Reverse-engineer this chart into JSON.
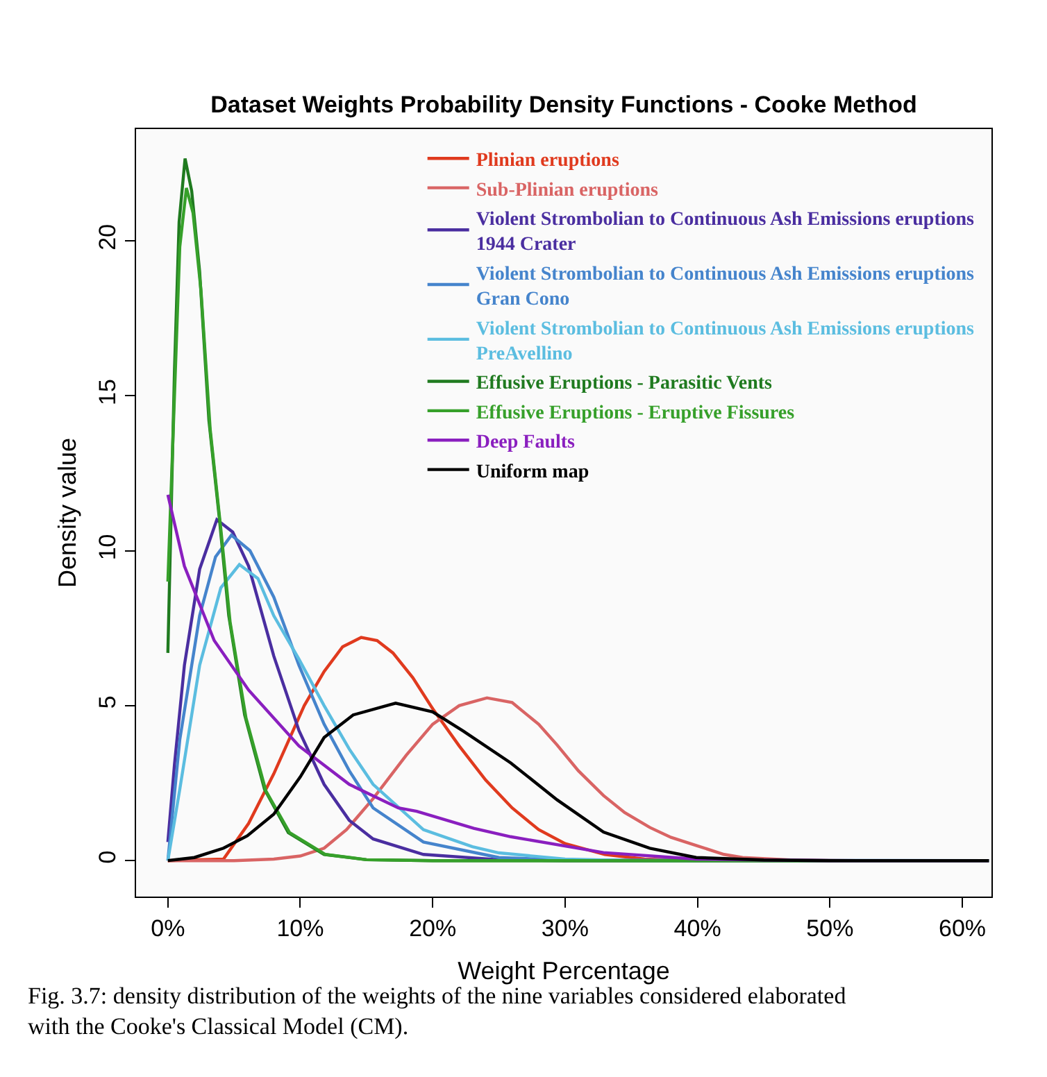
{
  "chart_data": {
    "type": "line",
    "title": "Dataset Weights Probability Density Functions - Cooke Method",
    "xlabel": "Weight Percentage",
    "ylabel": "Density value",
    "xlim": [
      -2.4,
      62.2
    ],
    "ylim": [
      -1.16,
      23.6
    ],
    "xticks": [
      {
        "value": 0,
        "label": "0%"
      },
      {
        "value": 10,
        "label": "10%"
      },
      {
        "value": 20,
        "label": "20%"
      },
      {
        "value": 30,
        "label": "30%"
      },
      {
        "value": 40,
        "label": "40%"
      },
      {
        "value": 50,
        "label": "50%"
      },
      {
        "value": 60,
        "label": "60%"
      }
    ],
    "yticks": [
      0,
      5,
      10,
      15,
      20
    ],
    "legend": "top right",
    "marker": "none",
    "line_style": "solid",
    "annotations": [
      "Fig. 3.7: density distribution of the weights of the nine variables considered elaborated with the Cooke's Classical Model (CM)."
    ],
    "series": [
      {
        "name": "Plinian eruptions",
        "color": "#e03a1e",
        "x": [
          0,
          4.2,
          6.1,
          8,
          10.3,
          11.8,
          13.2,
          14.6,
          15.8,
          17,
          18.5,
          20,
          22,
          24,
          26,
          28,
          30,
          33,
          36,
          40,
          62
        ],
        "values": [
          0,
          0.05,
          1.2,
          2.8,
          5.0,
          6.1,
          6.9,
          7.2,
          7.1,
          6.7,
          5.9,
          4.9,
          3.7,
          2.6,
          1.7,
          1.0,
          0.55,
          0.2,
          0.05,
          0,
          0
        ]
      },
      {
        "name": "Sub-Plinian eruptions",
        "color": "#d96464",
        "x": [
          0,
          5,
          8,
          10,
          11.8,
          13.5,
          15.5,
          18,
          20,
          22,
          24.1,
          26,
          28,
          29.4,
          31,
          32.9,
          34.5,
          36.4,
          38,
          39.9,
          42,
          43.4,
          47,
          52,
          62
        ],
        "values": [
          0,
          0,
          0.05,
          0.15,
          0.4,
          1.0,
          2.0,
          3.4,
          4.4,
          5.0,
          5.25,
          5.1,
          4.4,
          3.73,
          2.9,
          2.1,
          1.55,
          1.07,
          0.75,
          0.49,
          0.2,
          0.1,
          0.02,
          0,
          0
        ]
      },
      {
        "name": "Violent Strombolian to Continuous Ash Emissions eruptions\n1944 Crater",
        "color": "#4a2ea0",
        "x": [
          0,
          0.5,
          1.25,
          2.4,
          3.7,
          4.9,
          6.1,
          8,
          9.9,
          11.8,
          13.7,
          15.5,
          19.3,
          25,
          30,
          62
        ],
        "values": [
          0.6,
          3.1,
          6.3,
          9.4,
          11.0,
          10.6,
          9.5,
          6.6,
          4.2,
          2.46,
          1.3,
          0.7,
          0.2,
          0.03,
          0,
          0
        ]
      },
      {
        "name": "Violent Strombolian to Continuous Ash Emissions eruptions\nGran Cono",
        "color": "#4584cc",
        "x": [
          0,
          0.9,
          2.4,
          3.6,
          4.8,
          6.2,
          8,
          9.9,
          11.8,
          13.7,
          15.5,
          19.3,
          25,
          30,
          62
        ],
        "values": [
          0,
          3.9,
          7.9,
          9.8,
          10.5,
          10.0,
          8.5,
          6.3,
          4.4,
          2.9,
          1.7,
          0.6,
          0.1,
          0.02,
          0
        ]
      },
      {
        "name": "Violent Strombolian to Continuous Ash Emissions eruptions\nPreAvellino",
        "color": "#5bbde0",
        "x": [
          0,
          0.9,
          2.4,
          4,
          5.4,
          6.8,
          8,
          9.9,
          11.8,
          13.7,
          15.5,
          19.3,
          23,
          25,
          30,
          35,
          62
        ],
        "values": [
          0,
          2.3,
          6.3,
          8.8,
          9.55,
          9.1,
          7.9,
          6.5,
          5.0,
          3.6,
          2.46,
          1.0,
          0.45,
          0.25,
          0.05,
          0,
          0
        ]
      },
      {
        "name": "Effusive Eruptions - Parasitic Vents",
        "color": "#1f7a1f",
        "x": [
          0,
          0.5,
          0.85,
          1.3,
          1.8,
          2.4,
          3.1,
          3.9,
          4.6,
          5.8,
          7.3,
          9.1,
          11.8,
          15,
          20,
          62
        ],
        "values": [
          6.7,
          15.8,
          20.6,
          22.65,
          21.6,
          19.0,
          14.2,
          11.0,
          7.9,
          4.7,
          2.3,
          0.9,
          0.2,
          0.03,
          0,
          0
        ]
      },
      {
        "name": "Effusive Eruptions - Eruptive Fissures",
        "color": "#36a02a",
        "x": [
          0,
          0.5,
          0.9,
          1.4,
          1.9,
          2.5,
          3.2,
          4.0,
          4.7,
          5.9,
          7.4,
          9.2,
          11.9,
          15,
          20,
          62
        ],
        "values": [
          9.0,
          15.0,
          19.8,
          21.7,
          20.9,
          18.4,
          13.9,
          10.7,
          7.7,
          4.6,
          2.25,
          0.9,
          0.2,
          0.03,
          0,
          0
        ]
      },
      {
        "name": "Deep Faults",
        "color": "#8a1fbf",
        "x": [
          0,
          1.25,
          3.5,
          6.1,
          9.9,
          13.7,
          17.4,
          18.8,
          23.1,
          25.9,
          32.9,
          39.9,
          45,
          50,
          62
        ],
        "values": [
          11.8,
          9.5,
          7.1,
          5.5,
          3.7,
          2.46,
          1.7,
          1.59,
          1.04,
          0.77,
          0.26,
          0.05,
          0.02,
          0,
          0
        ]
      },
      {
        "name": "Uniform map",
        "color": "#000000",
        "x": [
          0,
          2,
          4.2,
          6,
          8,
          10,
          11.8,
          14,
          17.2,
          20,
          22.3,
          25.9,
          29.4,
          32.9,
          36.4,
          39.9,
          45,
          50,
          62
        ],
        "values": [
          0,
          0.1,
          0.4,
          0.8,
          1.5,
          2.7,
          3.97,
          4.7,
          5.08,
          4.8,
          4.18,
          3.15,
          1.96,
          0.92,
          0.4,
          0.1,
          0.02,
          0,
          0
        ]
      }
    ]
  }
}
